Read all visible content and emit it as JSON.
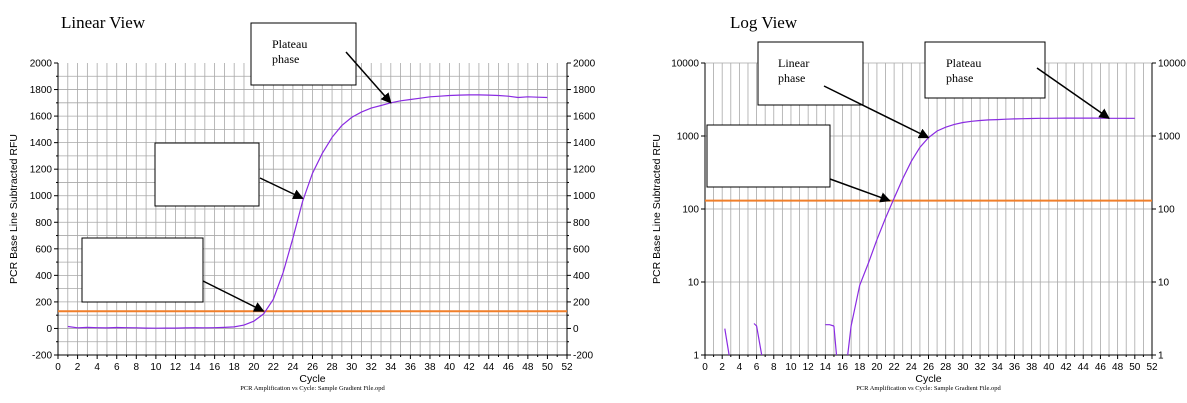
{
  "chart_data": [
    {
      "type": "line",
      "title": "Linear View",
      "xlabel": "Cycle",
      "ylabel": "PCR Base Line Subtracted RFU",
      "caption": "PCR Amplification vs Cycle: Sample Gradient File.opd",
      "xlim": [
        0,
        52
      ],
      "ylim": [
        -200,
        2000
      ],
      "yscale": "linear",
      "x_ticks": [
        0,
        2,
        4,
        6,
        8,
        10,
        12,
        14,
        16,
        18,
        20,
        22,
        24,
        26,
        28,
        30,
        32,
        34,
        36,
        38,
        40,
        42,
        44,
        46,
        48,
        50,
        52
      ],
      "y_ticks": [
        -200,
        0,
        200,
        400,
        600,
        800,
        1000,
        1200,
        1400,
        1600,
        1800,
        2000
      ],
      "y_tick_labels": [
        "-200",
        "0",
        "200",
        "400",
        "600",
        "800",
        "1000",
        "1200",
        "1400",
        "1600",
        "1800",
        "2000"
      ],
      "grid": true,
      "threshold": 130,
      "threshold_color": "#f07f2a",
      "series_color": "#8a2be2",
      "series": [
        {
          "x": [
            1,
            2,
            3,
            4,
            5,
            6,
            7,
            8,
            9,
            10,
            11,
            12,
            13,
            14,
            15,
            16,
            17,
            18,
            19,
            20,
            21,
            22,
            23,
            24,
            25,
            26,
            27,
            28,
            29,
            30,
            31,
            32,
            33,
            34,
            35,
            36,
            37,
            38,
            39,
            40,
            41,
            42,
            43,
            44,
            45,
            46,
            47,
            48,
            49,
            50
          ],
          "values": [
            15,
            5,
            8,
            6,
            4,
            7,
            6,
            5,
            3,
            2,
            3,
            3,
            4,
            6,
            5,
            6,
            8,
            12,
            25,
            55,
            110,
            220,
            420,
            680,
            960,
            1170,
            1320,
            1440,
            1530,
            1590,
            1630,
            1660,
            1680,
            1700,
            1715,
            1725,
            1735,
            1745,
            1750,
            1755,
            1758,
            1760,
            1760,
            1758,
            1755,
            1750,
            1740,
            1745,
            1742,
            1740
          ]
        }
      ],
      "annotations": [
        {
          "text": "Plateau\nphase",
          "target": [
            34,
            1700
          ]
        },
        {
          "text": "",
          "target": [
            25,
            980
          ]
        },
        {
          "text": "",
          "target": [
            21,
            130
          ]
        }
      ]
    },
    {
      "type": "line",
      "title": "Log View",
      "xlabel": "Cycle",
      "ylabel": "PCR Base Line Subtracted RFU",
      "caption": "PCR Amplification vs Cycle: Sample Gradient File.opd",
      "xlim": [
        0,
        52
      ],
      "ylim": [
        1,
        10000
      ],
      "yscale": "log",
      "x_ticks": [
        0,
        2,
        4,
        6,
        8,
        10,
        12,
        14,
        16,
        18,
        20,
        22,
        24,
        26,
        28,
        30,
        32,
        34,
        36,
        38,
        40,
        42,
        44,
        46,
        48,
        50,
        52
      ],
      "y_ticks": [
        1,
        10,
        100,
        1000,
        10000
      ],
      "y_tick_labels": [
        "1",
        "10",
        "100",
        "1000",
        "10000"
      ],
      "grid": true,
      "threshold": 130,
      "threshold_color": "#f07f2a",
      "series_color": "#8a2be2",
      "series": [
        {
          "x": [
            2.3,
            2.8
          ],
          "values": [
            2.3,
            1
          ]
        },
        {
          "x": [
            5.7,
            6.0,
            6.6
          ],
          "values": [
            2.7,
            2.5,
            1
          ]
        },
        {
          "x": [
            14.0,
            14.5,
            15.0
          ],
          "values": [
            2.6,
            2.6,
            2.5
          ]
        },
        {
          "x": [
            15.0,
            15.3
          ],
          "values": [
            2.5,
            1
          ]
        },
        {
          "x": [
            16.6,
            17,
            18,
            19,
            20,
            21,
            22,
            23,
            24,
            25,
            26,
            27,
            28,
            29,
            30,
            31,
            32,
            33,
            34,
            35,
            36,
            37,
            38,
            39,
            40,
            41,
            42,
            43,
            44,
            45,
            46,
            47,
            48,
            49,
            50
          ],
          "values": [
            1,
            2.5,
            9,
            18,
            38,
            75,
            140,
            260,
            450,
            700,
            950,
            1170,
            1320,
            1440,
            1530,
            1590,
            1630,
            1660,
            1680,
            1700,
            1715,
            1725,
            1735,
            1745,
            1750,
            1755,
            1758,
            1760,
            1760,
            1758,
            1755,
            1750,
            1745,
            1745,
            1745
          ]
        }
      ],
      "annotations": [
        {
          "text": "Linear\nphase",
          "target": [
            26,
            950
          ]
        },
        {
          "text": "Plateau\nphase",
          "target": [
            47,
            1750
          ]
        },
        {
          "text": "",
          "target": [
            21.5,
            130
          ]
        }
      ]
    }
  ]
}
